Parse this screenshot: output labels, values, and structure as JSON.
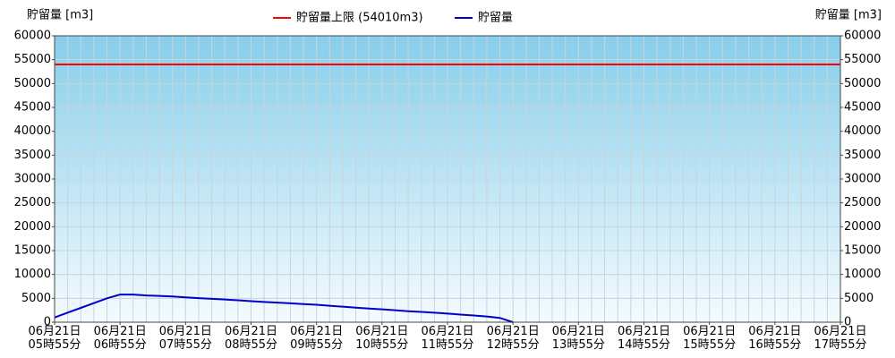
{
  "chart_data": {
    "type": "line",
    "y_label": "貯留量 [m3]",
    "y2_label": "貯留量 [m3]",
    "categories": [
      "06月21日\n05時55分",
      null,
      null,
      null,
      null,
      "06月21日\n06時55分",
      null,
      null,
      null,
      null,
      "06月21日\n07時55分",
      null,
      null,
      null,
      null,
      "06月21日\n08時55分",
      null,
      null,
      null,
      null,
      "06月21日\n09時55分",
      null,
      null,
      null,
      null,
      "06月21日\n10時55分",
      null,
      null,
      null,
      null,
      "06月21日\n11時55分",
      null,
      null,
      null,
      null,
      "06月21日\n12時55分",
      null,
      null,
      null,
      null,
      "06月21日\n13時55分",
      null,
      null,
      null,
      null,
      "06月21日\n14時55分",
      null,
      null,
      null,
      null,
      "06月21日\n15時55分",
      null,
      null,
      null,
      null,
      "06月21日\n16時55分",
      null,
      null,
      null,
      null,
      "06月21日\n17時55分"
    ],
    "series": [
      {
        "name": "貯留量",
        "color": "#0000cc",
        "values": [
          1000,
          2000,
          3000,
          4000,
          5000,
          5800,
          5800,
          5600,
          5500,
          5400,
          5200,
          5050,
          4900,
          4750,
          4600,
          4400,
          4250,
          4100,
          3950,
          3800,
          3650,
          3450,
          3250,
          3050,
          2850,
          2700,
          2500,
          2300,
          2150,
          2000,
          1800,
          1600,
          1400,
          1200,
          900,
          0,
          null,
          null,
          null,
          null,
          null,
          null,
          null,
          null,
          null,
          null,
          null,
          null,
          null,
          null,
          null,
          null,
          null,
          null,
          null,
          null,
          null,
          null,
          null,
          null,
          null
        ]
      }
    ],
    "limit": {
      "name": "貯留量上限 (54010m3)",
      "value": 54010,
      "color": "#ff0000"
    },
    "ylim": [
      0,
      60000
    ],
    "yticks": [
      0,
      5000,
      10000,
      15000,
      20000,
      25000,
      30000,
      35000,
      40000,
      45000,
      50000,
      55000,
      60000
    ],
    "y2lim": [
      0,
      60000
    ],
    "y2ticks": [
      0,
      5000,
      10000,
      15000,
      20000,
      25000,
      30000,
      35000,
      40000,
      45000,
      50000,
      55000,
      60000
    ],
    "grid": true
  }
}
